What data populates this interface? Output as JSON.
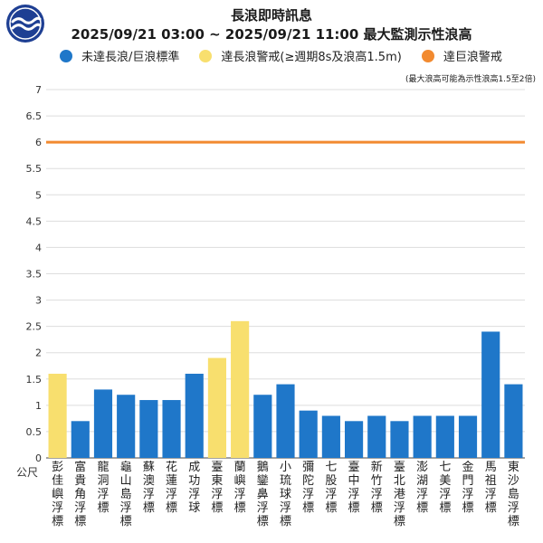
{
  "header": {
    "title": "長浪即時訊息",
    "subtitle": "2025/09/21 03:00 ~ 2025/09/21 11:00 最大監測示性浪高",
    "note": "(最大浪高可能為示性浪高1.5至2倍)"
  },
  "legend": [
    {
      "label": "未達長浪/巨浪標準",
      "color": "#1f77c9"
    },
    {
      "label": "達長浪警戒(≥週期8s及浪高1.5m)",
      "color": "#f8df6e"
    },
    {
      "label": "達巨浪警戒",
      "color": "#f28a30"
    }
  ],
  "colors": {
    "blue": "#1f77c9",
    "yellow": "#f8df6e",
    "orange": "#f28a30",
    "grid": "#dddddd"
  },
  "chart_data": {
    "type": "bar",
    "ylabel": "公尺",
    "ylim": [
      0,
      7
    ],
    "yticks": [
      "0",
      "0.5",
      "1",
      "1.5",
      "2",
      "2.5",
      "3",
      "3.5",
      "4",
      "4.5",
      "5",
      "5.5",
      "6",
      "6.5",
      "7"
    ],
    "threshold": 6,
    "categories": [
      "彭佳嶼浮標",
      "富貴角浮標",
      "龍洞浮標",
      "龜山島浮標",
      "蘇澳浮標",
      "花蓮浮標",
      "成功浮球",
      "臺東浮標",
      "蘭嶼浮標",
      "鵝鑾鼻浮標",
      "小琉球浮標",
      "彌陀浮標",
      "七股浮標",
      "臺中浮標",
      "新竹浮標",
      "臺北港浮標",
      "澎湖浮標",
      "七美浮標",
      "金門浮標",
      "馬祖浮標",
      "東沙島浮標"
    ],
    "values": [
      1.6,
      0.7,
      1.3,
      1.2,
      1.1,
      1.1,
      1.6,
      1.9,
      2.6,
      1.2,
      1.4,
      0.9,
      0.8,
      0.7,
      0.8,
      0.7,
      0.8,
      0.8,
      0.8,
      2.4,
      1.4
    ],
    "status": [
      "long",
      "none",
      "none",
      "none",
      "none",
      "none",
      "none",
      "long",
      "long",
      "none",
      "none",
      "none",
      "none",
      "none",
      "none",
      "none",
      "none",
      "none",
      "none",
      "none",
      "none"
    ],
    "grid": true
  }
}
